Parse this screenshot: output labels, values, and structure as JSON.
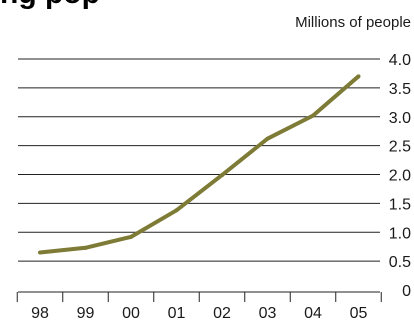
{
  "chart_data": {
    "type": "line",
    "title": "ng pop",
    "unit_label": "Millions of people",
    "categories": [
      "98",
      "99",
      "00",
      "01",
      "02",
      "03",
      "04",
      "05"
    ],
    "series": [
      {
        "values": [
          0.65,
          0.73,
          0.92,
          1.38,
          1.99,
          2.62,
          3.02,
          3.7
        ]
      }
    ],
    "y_ticks": [
      "4.0",
      "3.5",
      "3.0",
      "2.5",
      "2.0",
      "1.5",
      "1.0",
      "0.5",
      "0"
    ],
    "ylim": [
      0,
      4.0
    ],
    "grid": true,
    "y_axis_side": "right",
    "line_color": "#7d7b35",
    "grid_color": "#222222"
  }
}
